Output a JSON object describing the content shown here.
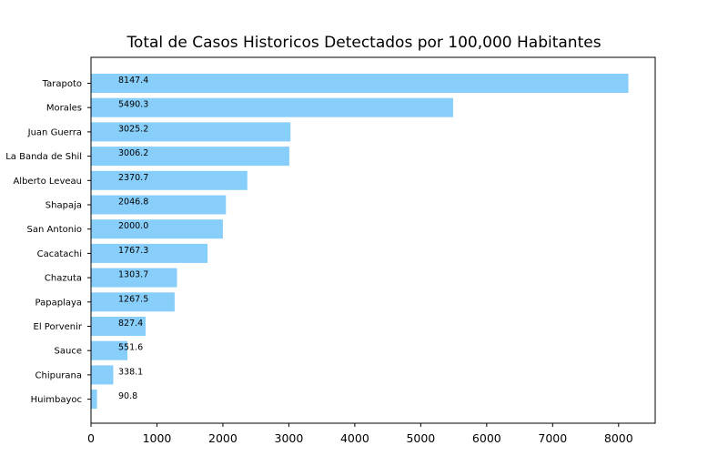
{
  "chart_data": {
    "type": "bar",
    "orientation": "horizontal",
    "title": "Total de Casos Historicos Detectados por 100,000 Habitantes",
    "xlabel": "",
    "ylabel": "",
    "categories": [
      "Tarapoto",
      "Morales",
      "Juan Guerra",
      "La Banda de Shil",
      "Alberto Leveau",
      "Shapaja",
      "San Antonio",
      "Cacatachi",
      "Chazuta",
      "Papaplaya",
      "El Porvenir",
      "Sauce",
      "Chipurana",
      "Huimbayoc"
    ],
    "values": [
      8147.4,
      5490.3,
      3025.2,
      3006.2,
      2370.7,
      2046.8,
      2000.0,
      1767.3,
      1303.7,
      1267.5,
      827.4,
      551.6,
      338.1,
      90.8
    ],
    "data_labels": [
      "8147.4",
      "5490.3",
      "3025.2",
      "3006.2",
      "2370.7",
      "2046.8",
      "2000.0",
      "1767.3",
      "1303.7",
      "1267.5",
      "827.4",
      "551.6",
      "338.1",
      "90.8"
    ],
    "xlim": [
      0,
      8554.8
    ],
    "xticks": [
      0,
      1000,
      2000,
      3000,
      4000,
      5000,
      6000,
      7000,
      8000
    ],
    "xtick_labels": [
      "0",
      "1000",
      "2000",
      "3000",
      "4000",
      "5000",
      "6000",
      "7000",
      "8000"
    ],
    "bar_color": "#87cefa",
    "grid": false,
    "legend": "none"
  }
}
